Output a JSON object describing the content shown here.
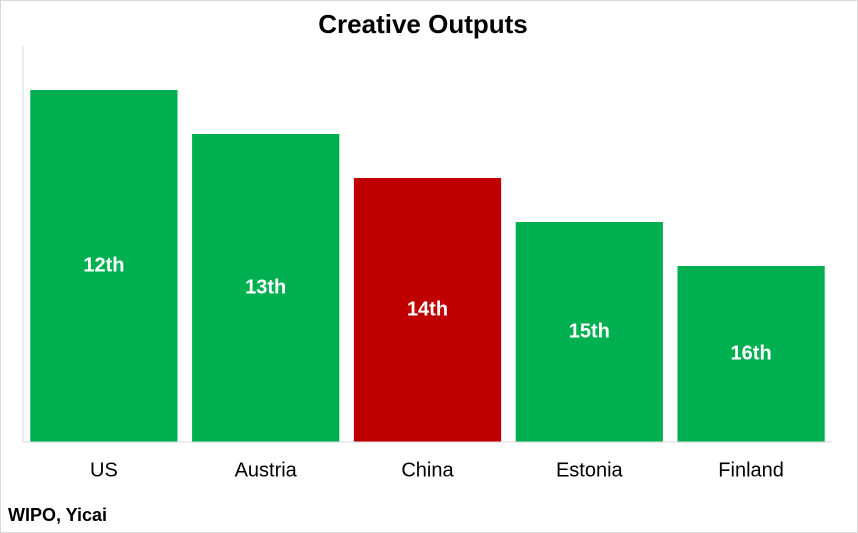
{
  "chart_data": {
    "type": "bar",
    "title": "Creative Outputs",
    "categories": [
      "US",
      "Austria",
      "China",
      "Estonia",
      "Finland"
    ],
    "values": [
      12,
      13,
      14,
      15,
      16
    ],
    "value_labels": [
      "12th",
      "13th",
      "14th",
      "15th",
      "16th"
    ],
    "colors": [
      "#00b050",
      "#00b050",
      "#c00000",
      "#00b050",
      "#00b050"
    ],
    "ylim": [
      20,
      11
    ],
    "source": "WIPO, Yicai"
  }
}
